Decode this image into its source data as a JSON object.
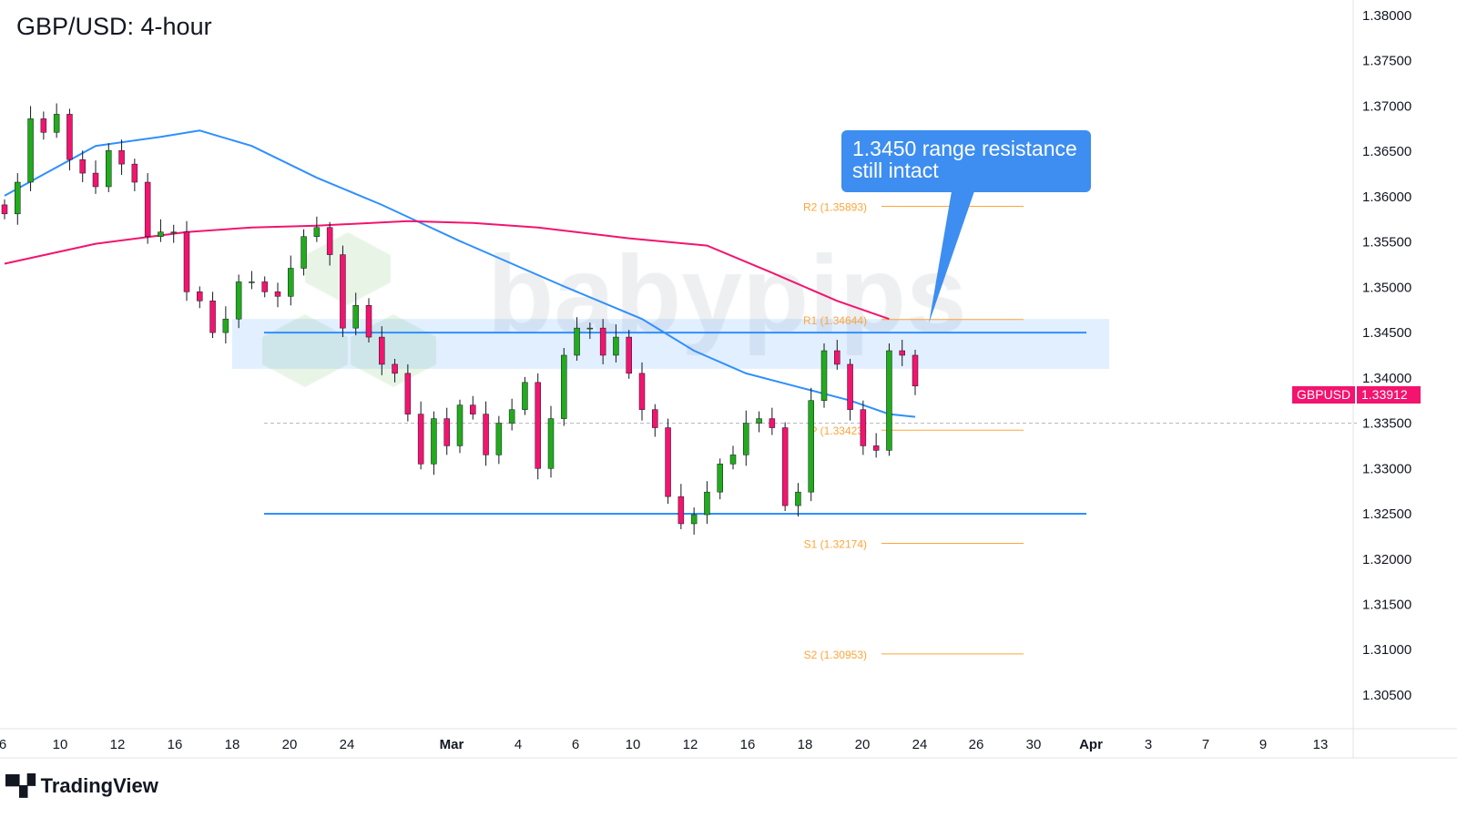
{
  "title": "GBP/USD: 4-hour",
  "brand": "TradingView",
  "watermark": "babypips",
  "callout": "1.3450 range resistance still intact",
  "price_tag": {
    "symbol": "GBPUSD",
    "value": "1.33912",
    "color": "#f2146e"
  },
  "chart_data": {
    "type": "candlestick",
    "ylim": [
      1.3025,
      1.3825
    ],
    "y_ticks": [
      "1.38000",
      "1.37500",
      "1.37000",
      "1.36500",
      "1.36000",
      "1.35500",
      "1.35000",
      "1.34500",
      "1.34000",
      "1.33500",
      "1.33000",
      "1.32500",
      "1.32000",
      "1.31500",
      "1.31000",
      "1.30500"
    ],
    "x_ticks": [
      "6",
      "10",
      "12",
      "16",
      "18",
      "20",
      "24",
      "Mar",
      "4",
      "6",
      "10",
      "12",
      "16",
      "18",
      "20",
      "24",
      "26",
      "30",
      "Apr",
      "3",
      "7",
      "9",
      "13"
    ],
    "closes": [
      1.3581,
      1.3616,
      1.3686,
      1.3671,
      1.3691,
      1.3641,
      1.3626,
      1.3611,
      1.3651,
      1.3636,
      1.3616,
      1.3556,
      1.3561,
      1.3561,
      1.3495,
      1.3485,
      1.345,
      1.3465,
      1.3506,
      1.3506,
      1.3495,
      1.349,
      1.3521,
      1.3556,
      1.3566,
      1.3536,
      1.3455,
      1.348,
      1.3445,
      1.3415,
      1.3405,
      1.336,
      1.3305,
      1.3355,
      1.3325,
      1.337,
      1.336,
      1.3315,
      1.335,
      1.3365,
      1.3395,
      1.33,
      1.3355,
      1.3425,
      1.3455,
      1.3455,
      1.3425,
      1.3445,
      1.3405,
      1.3365,
      1.3345,
      1.3269,
      1.3239,
      1.3249,
      1.3274,
      1.3305,
      1.3315,
      1.335,
      1.3355,
      1.3345,
      1.3259,
      1.3274,
      1.3375,
      1.343,
      1.3415,
      1.3365,
      1.3325,
      1.332,
      1.343,
      1.3425,
      1.3391
    ],
    "ma_fast": [
      [
        0,
        1.3601
      ],
      [
        7,
        1.3656
      ],
      [
        12,
        1.3666
      ],
      [
        15,
        1.3673
      ],
      [
        19,
        1.3656
      ],
      [
        24,
        1.3621
      ],
      [
        29,
        1.3591
      ],
      [
        32,
        1.3571
      ],
      [
        35,
        1.3551
      ],
      [
        39,
        1.3526
      ],
      [
        43,
        1.3501
      ],
      [
        49,
        1.3465
      ],
      [
        53,
        1.343
      ],
      [
        57,
        1.3405
      ],
      [
        61,
        1.339
      ],
      [
        65,
        1.3375
      ],
      [
        68,
        1.336
      ],
      [
        70,
        1.3357
      ]
    ],
    "ma_slow": [
      [
        0,
        1.3526
      ],
      [
        7,
        1.3548
      ],
      [
        14,
        1.3561
      ],
      [
        19,
        1.3566
      ],
      [
        24,
        1.3568
      ],
      [
        31,
        1.3573
      ],
      [
        36,
        1.3571
      ],
      [
        41,
        1.3566
      ],
      [
        48,
        1.3554
      ],
      [
        54,
        1.3546
      ],
      [
        59,
        1.3516
      ],
      [
        64,
        1.3485
      ],
      [
        68,
        1.3465
      ]
    ],
    "range_lines": [
      1.345,
      1.325
    ],
    "resistance_zone": [
      1.341,
      1.3465
    ],
    "dashed_level": 1.335,
    "pivots": [
      {
        "label": "R2 (1.35893)",
        "value": 1.35893
      },
      {
        "label": "R1 (1.34644)",
        "value": 1.34644
      },
      {
        "label": "P (1.33423)",
        "value": 1.33423
      },
      {
        "label": "S1 (1.32174)",
        "value": 1.32174
      },
      {
        "label": "S2 (1.30953)",
        "value": 1.30953
      }
    ],
    "colors": {
      "up": "#22ab1c",
      "down": "#f2146e",
      "ma_fast": "#2f8fff",
      "ma_slow": "#f2146e",
      "range": "#2f8fff",
      "pivot": "#ffa53a"
    }
  }
}
